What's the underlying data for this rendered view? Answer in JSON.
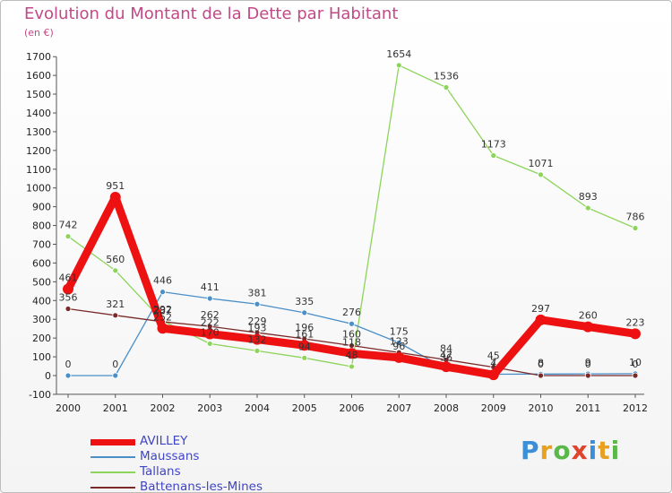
{
  "header": {
    "title": "Evolution du Montant de la Dette par Habitant",
    "subtitle": "(en €)"
  },
  "logo": {
    "text": "Proxiti",
    "colors": [
      "#3a8fd6",
      "#e8a020",
      "#59b847",
      "#e0442a",
      "#3a8fd6",
      "#e8a020",
      "#59b847"
    ]
  },
  "chart_data": {
    "type": "line",
    "title": "Evolution du Montant de la Dette par Habitant",
    "subtitle": "(en €)",
    "xlabel": "",
    "ylabel": "",
    "x": [
      "2000",
      "2001",
      "2002",
      "2003",
      "2004",
      "2005",
      "2006",
      "2007",
      "2008",
      "2009",
      "2010",
      "2011",
      "2012"
    ],
    "ylim": [
      -100,
      1700
    ],
    "yticks": [
      -100,
      0,
      100,
      200,
      300,
      400,
      500,
      600,
      700,
      800,
      900,
      1000,
      1100,
      1200,
      1300,
      1400,
      1500,
      1600,
      1700
    ],
    "grid": false,
    "legend_position": "bottom-left",
    "series": [
      {
        "name": "AVILLEY",
        "color": "#ee1111",
        "values": [
          461,
          951,
          252,
          222,
          193,
          161,
          118,
          96,
          47,
          4,
          297,
          260,
          223
        ],
        "labels": [
          "461",
          "951",
          "252",
          "222",
          "193",
          "161",
          "118",
          "96",
          "47",
          "4",
          "297",
          "260",
          "223"
        ]
      },
      {
        "name": "Maussans",
        "color": "#4a8fc8",
        "values": [
          0,
          0,
          446,
          411,
          381,
          335,
          276,
          175,
          36,
          7,
          8,
          9,
          10
        ],
        "labels": [
          "0",
          "0",
          "446",
          "411",
          "381",
          "335",
          "276",
          "175",
          "36",
          "7",
          "8",
          "9",
          "10"
        ]
      },
      {
        "name": "Tallans",
        "color": "#8cd45a",
        "values": [
          742,
          560,
          292,
          170,
          132,
          94,
          48,
          1654,
          1536,
          1173,
          1071,
          893,
          786
        ],
        "labels": [
          "742",
          "560",
          "292",
          "170",
          "132",
          "94",
          "48",
          "1654",
          "1536",
          "1173",
          "1071",
          "893",
          "786"
        ]
      },
      {
        "name": "Battenans-les-Mines",
        "color": "#7a2a2a",
        "values": [
          356,
          321,
          287,
          262,
          229,
          196,
          160,
          123,
          84,
          45,
          0,
          0,
          0
        ],
        "labels": [
          "356",
          "321",
          "287",
          "262",
          "229",
          "196",
          "160",
          "123",
          "84",
          "45",
          "0",
          "0",
          "0"
        ]
      }
    ]
  }
}
